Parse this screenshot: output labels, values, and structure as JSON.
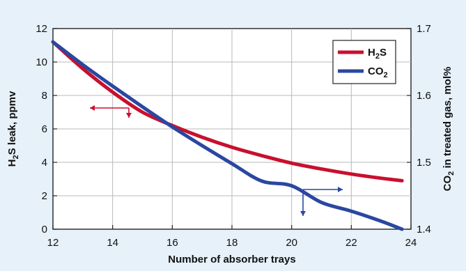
{
  "chart_data": {
    "type": "line",
    "xlabel": "Number of absorber trays",
    "ylabel_left": {
      "main": "H",
      "sub": "2",
      "rest": "S leak, ppmv"
    },
    "ylabel_right": {
      "main": "CO",
      "sub": "2",
      "rest": " in treated gas, mol%"
    },
    "xlim": [
      12,
      24
    ],
    "ylim_left": [
      0,
      12
    ],
    "ylim_right": [
      1.4,
      1.7
    ],
    "x_ticks": [
      "12",
      "14",
      "16",
      "18",
      "20",
      "22",
      "24"
    ],
    "y_left_ticks": [
      "0",
      "2",
      "4",
      "6",
      "8",
      "10",
      "12"
    ],
    "y_right_ticks": [
      "1.4",
      "1.5",
      "1.6",
      "1.7"
    ],
    "grid": true,
    "legend_position": "top-right",
    "series": [
      {
        "name": "H2S",
        "label": {
          "main": "H",
          "sub": "2",
          "rest": "S"
        },
        "axis": "left",
        "color": "#c8102e",
        "x": [
          12,
          13,
          14,
          15,
          16,
          17,
          18,
          19,
          20,
          21,
          22,
          23,
          23.7
        ],
        "y": [
          11.2,
          9.6,
          8.2,
          7.0,
          6.2,
          5.5,
          4.9,
          4.4,
          3.95,
          3.6,
          3.3,
          3.05,
          2.9
        ]
      },
      {
        "name": "CO2",
        "label": {
          "main": "CO",
          "sub": "2",
          "rest": ""
        },
        "axis": "right",
        "color": "#2a47a0",
        "x": [
          12,
          13,
          14,
          15,
          16,
          17,
          18,
          19,
          20,
          21,
          22,
          23,
          23.7
        ],
        "y": [
          1.68,
          1.646,
          1.614,
          1.583,
          1.553,
          1.525,
          1.498,
          1.472,
          1.465,
          1.44,
          1.427,
          1.412,
          1.4
        ]
      }
    ]
  }
}
